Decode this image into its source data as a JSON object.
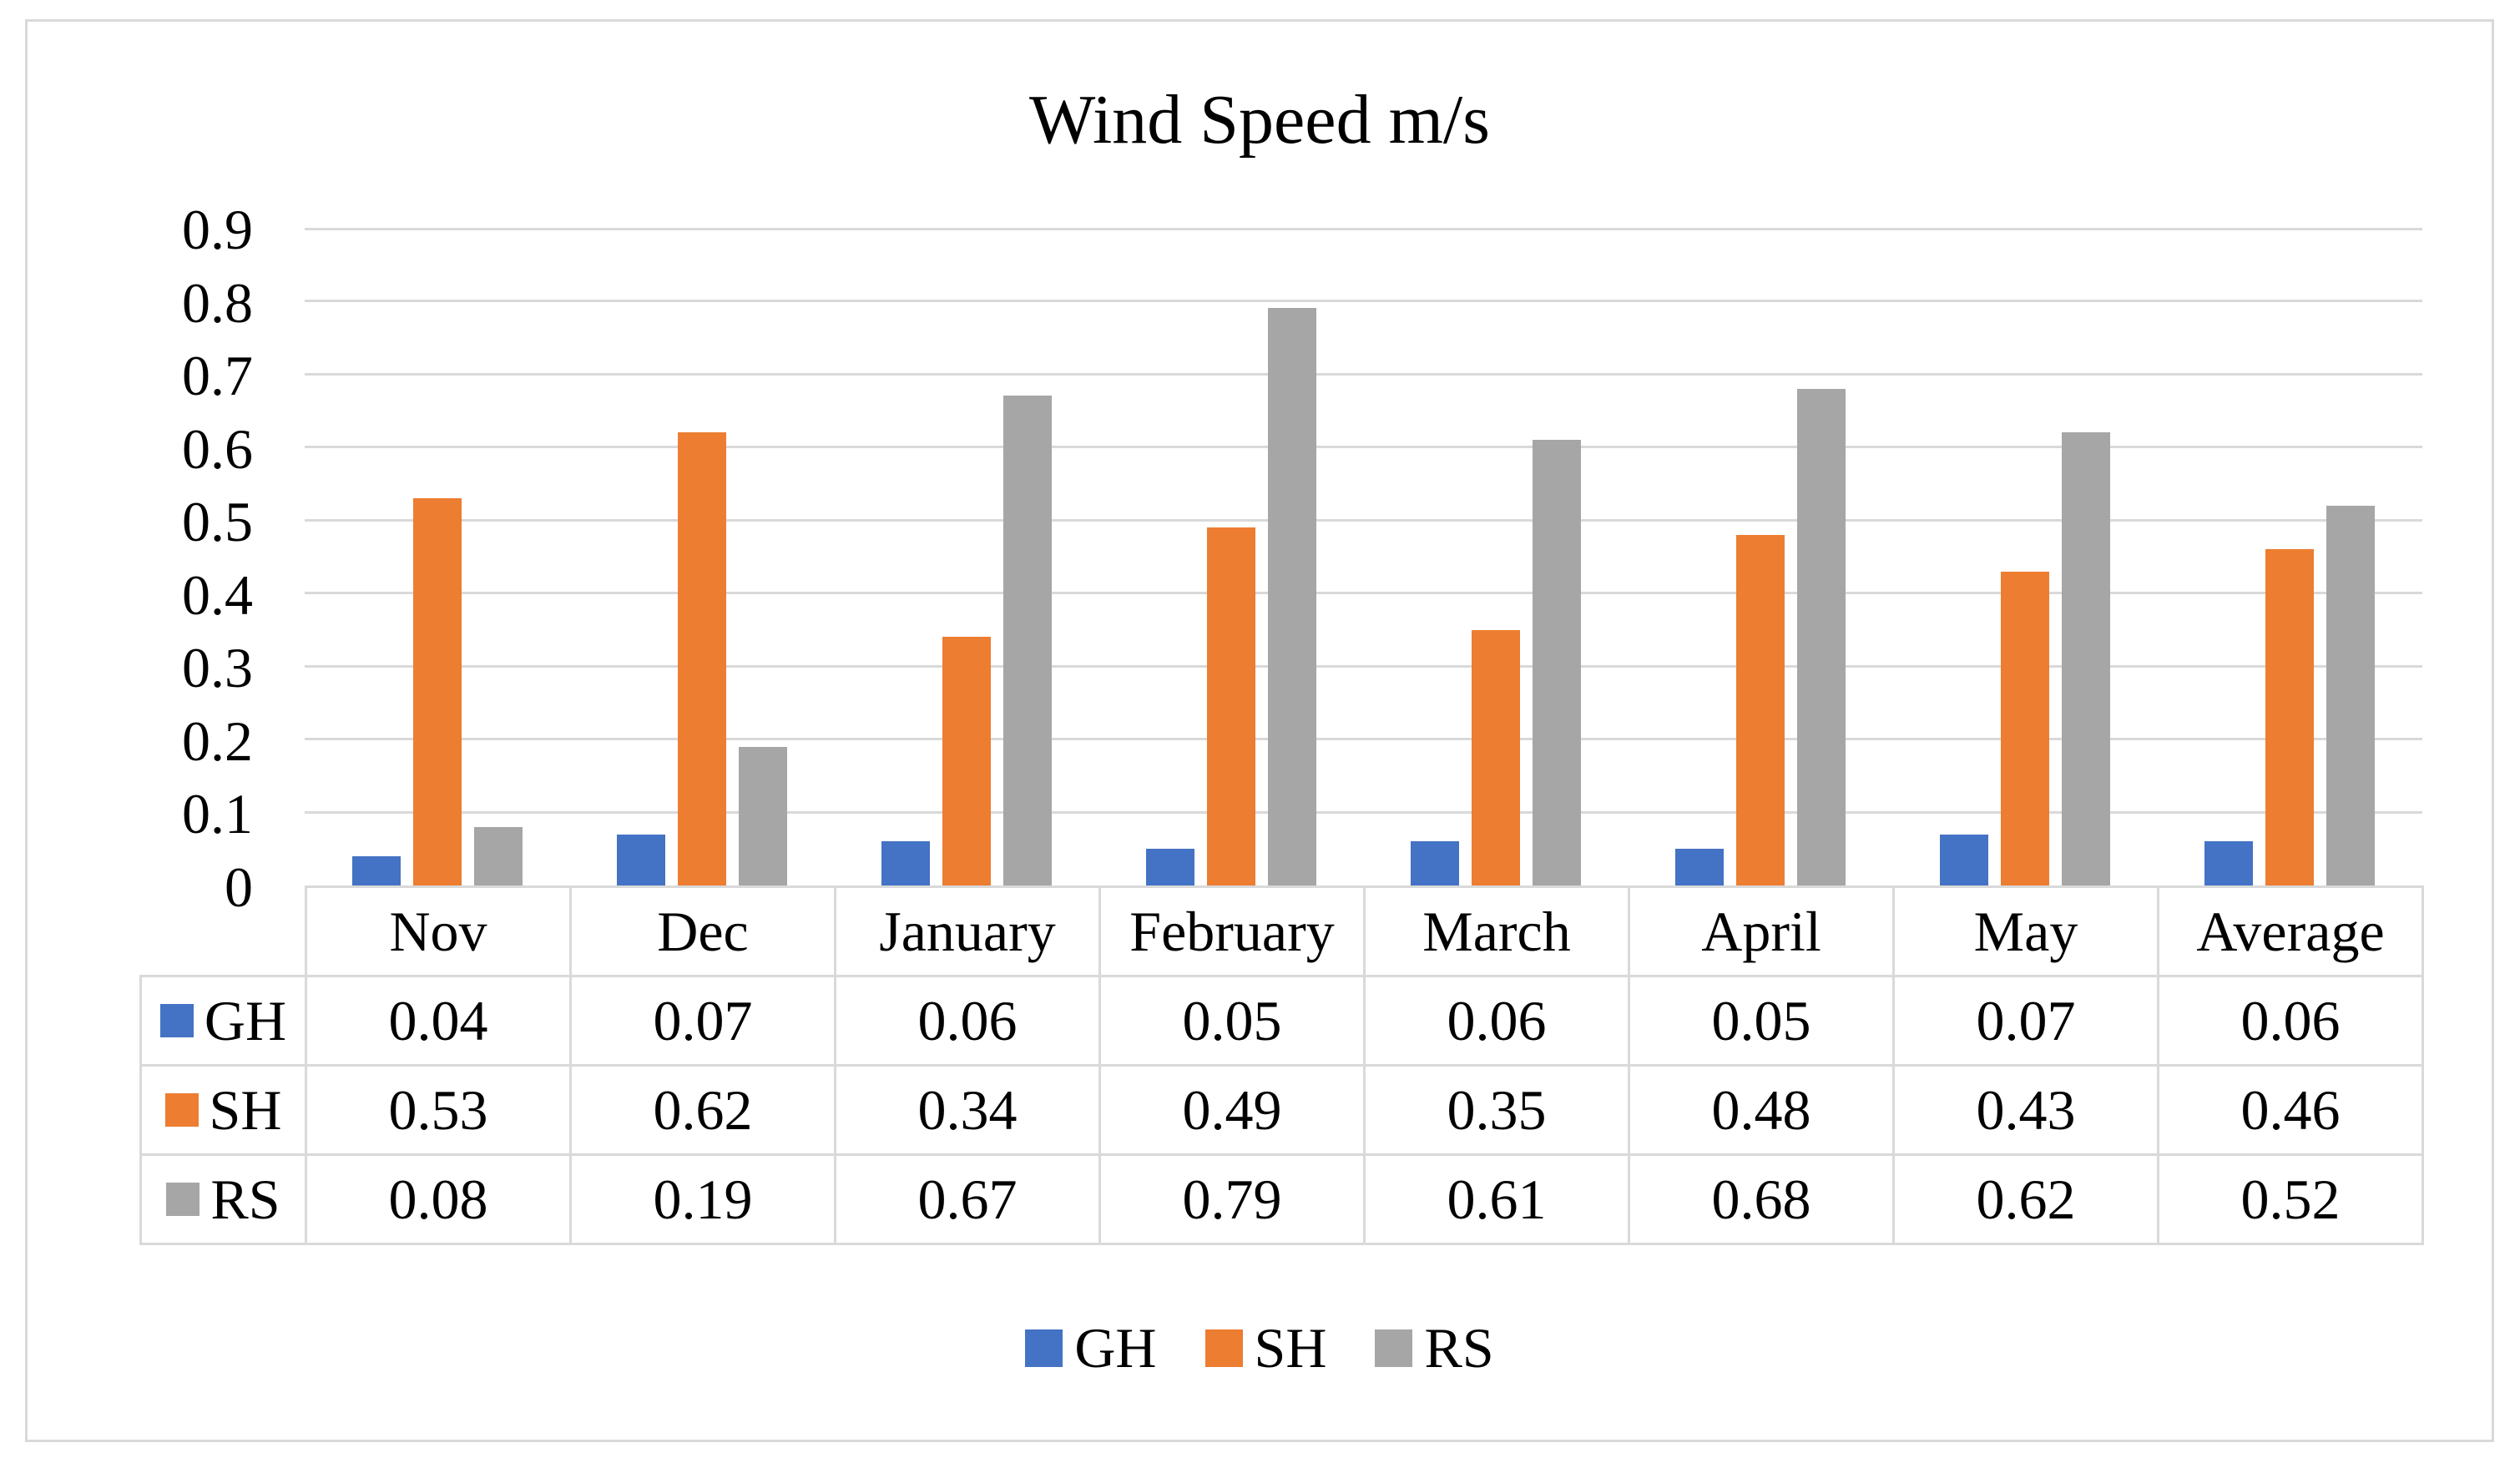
{
  "chart_data": {
    "type": "bar",
    "title": "Wind Speed m/s",
    "categories": [
      "Nov",
      "Dec",
      "January",
      "February",
      "March",
      "April",
      "May",
      "Average"
    ],
    "series": [
      {
        "name": "GH",
        "color": "#4472C4",
        "values": [
          0.04,
          0.07,
          0.06,
          0.05,
          0.06,
          0.05,
          0.07,
          0.06
        ]
      },
      {
        "name": "SH",
        "color": "#ED7D31",
        "values": [
          0.53,
          0.62,
          0.34,
          0.49,
          0.35,
          0.48,
          0.43,
          0.46
        ]
      },
      {
        "name": "RS",
        "color": "#A6A6A6",
        "values": [
          0.08,
          0.19,
          0.67,
          0.79,
          0.61,
          0.68,
          0.62,
          0.52
        ]
      }
    ],
    "ylim": [
      0,
      0.9
    ],
    "yticks": [
      0,
      0.1,
      0.2,
      0.3,
      0.4,
      0.5,
      0.6,
      0.7,
      0.8,
      0.9
    ],
    "ytick_labels": [
      "0",
      "0.1",
      "0.2",
      "0.3",
      "0.4",
      "0.5",
      "0.6",
      "0.7",
      "0.8",
      "0.9"
    ],
    "xlabel": "",
    "ylabel": "",
    "grid": true,
    "data_table_shown": true,
    "legend_position": "bottom"
  },
  "legend": {
    "items": [
      {
        "label": "GH",
        "color": "#4472C4"
      },
      {
        "label": "SH",
        "color": "#ED7D31"
      },
      {
        "label": "RS",
        "color": "#A6A6A6"
      }
    ]
  },
  "colors": {
    "gridline": "#D9D9D9",
    "table_border": "#D9D9D9",
    "frame_border": "#D9D9D9",
    "background": "#FFFFFF",
    "text": "#000000"
  }
}
